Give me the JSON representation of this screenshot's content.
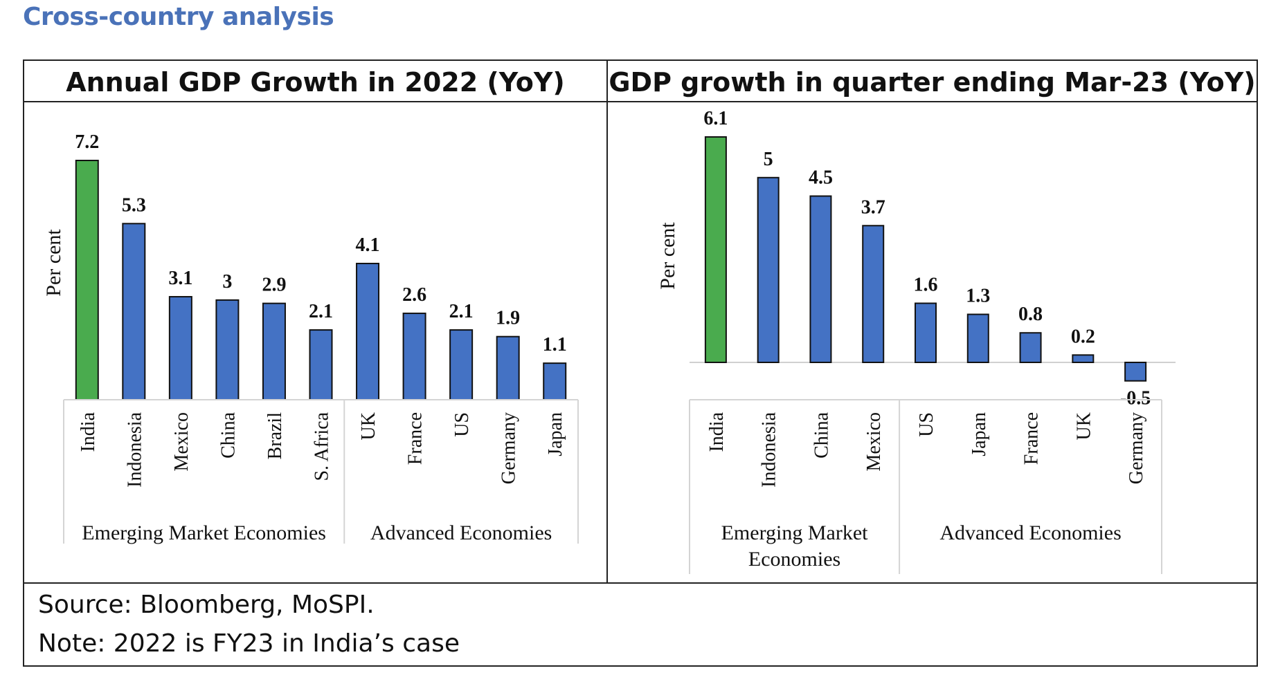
{
  "page": {
    "heading": "Cross-country analysis",
    "source": "Source: Bloomberg, MoSPI.",
    "note": "Note: 2022 is FY23 in India’s case"
  },
  "colors": {
    "india": "#4aab4e",
    "others": "#4472c4",
    "heading": "#4a72b8"
  },
  "chart_data": [
    {
      "type": "bar",
      "title": "Annual GDP Growth in 2022 (YoY)",
      "ylabel": "Per cent",
      "xlabel": "",
      "ylim": [
        0,
        8
      ],
      "grid": false,
      "categories": [
        "India",
        "Indonesia",
        "Mexico",
        "China",
        "Brazil",
        "S. Africa",
        "UK",
        "France",
        "US",
        "Germany",
        "Japan"
      ],
      "values": [
        7.2,
        5.3,
        3.1,
        3,
        2.9,
        2.1,
        4.1,
        2.6,
        2.1,
        1.9,
        1.1
      ],
      "groups": [
        {
          "label": "Emerging Market Economies",
          "count": 6
        },
        {
          "label": "Advanced Economies",
          "count": 5
        }
      ],
      "highlight": [
        "India"
      ]
    },
    {
      "type": "bar",
      "title": "GDP growth in quarter ending Mar-23 (YoY)",
      "ylabel": "Per cent",
      "xlabel": "",
      "ylim": [
        -1,
        6.5
      ],
      "grid": false,
      "categories": [
        "India",
        "Indonesia",
        "China",
        "Mexico",
        "US",
        "Japan",
        "France",
        "UK",
        "Germany"
      ],
      "values": [
        6.1,
        5,
        4.5,
        3.7,
        1.6,
        1.3,
        0.8,
        0.2,
        -0.5
      ],
      "groups": [
        {
          "label": "Emerging Market Economies",
          "count": 4
        },
        {
          "label": "Advanced Economies",
          "count": 5
        }
      ],
      "highlight": [
        "India"
      ]
    }
  ]
}
